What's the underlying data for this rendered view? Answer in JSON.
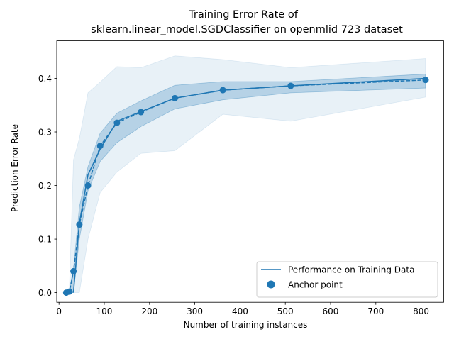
{
  "chart_data": {
    "type": "line",
    "title": "Training Error Rate of",
    "subtitle": "sklearn.linear_model.SGDClassifier on openmlid 723 dataset",
    "xlabel": "Number of training instances",
    "ylabel": "Prediction Error Rate",
    "xlim": [
      -5,
      850
    ],
    "ylim": [
      -0.018,
      0.47
    ],
    "xticks": [
      0,
      100,
      200,
      300,
      400,
      500,
      600,
      700,
      800
    ],
    "xtick_labels": [
      "0",
      "100",
      "200",
      "300",
      "400",
      "500",
      "600",
      "700",
      "800"
    ],
    "yticks": [
      0.0,
      0.1,
      0.2,
      0.3,
      0.4
    ],
    "ytick_labels": [
      "0.0",
      "0.1",
      "0.2",
      "0.3",
      "0.4"
    ],
    "grid": false,
    "legend_position": "lower-right",
    "colors": {
      "primary": "#1f77b4"
    },
    "series": [
      {
        "name": "Performance on Training Data",
        "style": "solid-line",
        "x": [
          16,
          23,
          32,
          45,
          64,
          91,
          128,
          181,
          256,
          362,
          512,
          810
        ],
        "y": [
          0.0,
          0.003,
          0.001,
          0.13,
          0.22,
          0.268,
          0.32,
          0.338,
          0.363,
          0.378,
          0.386,
          0.4
        ]
      },
      {
        "name": "",
        "style": "dashed-line",
        "x": [
          16,
          23,
          32,
          45,
          64,
          91,
          128,
          181,
          256,
          362,
          512,
          810
        ],
        "y": [
          0.0,
          0.002,
          0.04,
          0.127,
          0.2,
          0.274,
          0.317,
          0.337,
          0.363,
          0.378,
          0.386,
          0.397
        ]
      },
      {
        "name": "Anchor point",
        "style": "scatter",
        "x": [
          16,
          23,
          32,
          45,
          64,
          91,
          128,
          181,
          256,
          362,
          512,
          810
        ],
        "y": [
          0.0,
          0.002,
          0.04,
          0.127,
          0.2,
          0.274,
          0.317,
          0.337,
          0.363,
          0.378,
          0.386,
          0.397
        ]
      }
    ],
    "bands": [
      {
        "style": "inner",
        "x": [
          16,
          23,
          32,
          45,
          64,
          91,
          128,
          181,
          256,
          362,
          512,
          810
        ],
        "lower": [
          0.0,
          0.0,
          0.0,
          0.1,
          0.19,
          0.245,
          0.28,
          0.31,
          0.343,
          0.36,
          0.373,
          0.382
        ],
        "upper": [
          0.0,
          0.006,
          0.045,
          0.16,
          0.235,
          0.298,
          0.335,
          0.358,
          0.387,
          0.394,
          0.394,
          0.408
        ]
      },
      {
        "style": "outer",
        "x": [
          16,
          23,
          32,
          45,
          64,
          91,
          128,
          181,
          256,
          362,
          512,
          810
        ],
        "lower": [
          0.0,
          0.0,
          0.0,
          0.0,
          0.1,
          0.187,
          0.225,
          0.26,
          0.265,
          0.333,
          0.32,
          0.365
        ],
        "upper": [
          0.0,
          0.01,
          0.248,
          0.288,
          0.373,
          0.393,
          0.422,
          0.42,
          0.442,
          0.435,
          0.42,
          0.437
        ]
      }
    ]
  }
}
